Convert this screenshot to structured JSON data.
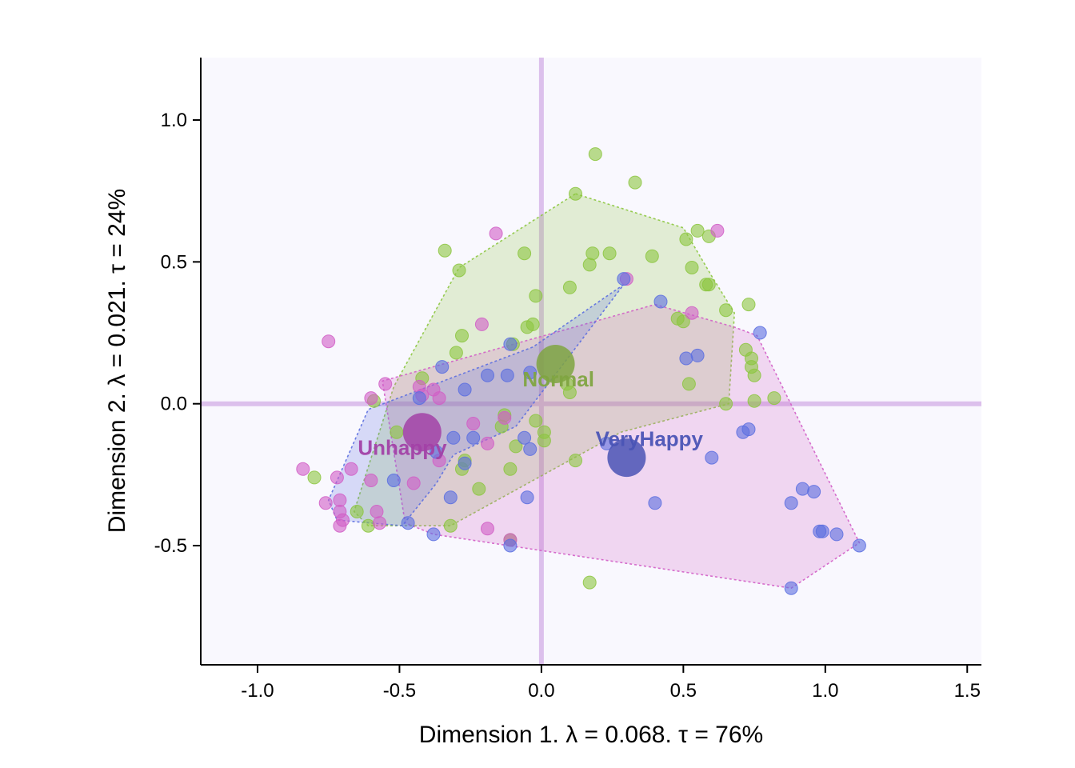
{
  "chart_data": {
    "type": "scatter",
    "xlabel": "Dimension 1.   λ = 0.068.  τ = 76%",
    "ylabel": "Dimension 2.   λ = 0.021.  τ = 24%",
    "xlim": [
      -1.2,
      1.55
    ],
    "ylim": [
      -0.92,
      1.22
    ],
    "xticks": [
      -1.0,
      -0.5,
      0.0,
      0.5,
      1.0,
      1.5
    ],
    "xtick_labels": [
      "-1.0",
      "-0.5",
      "0.0",
      "0.5",
      "1.0",
      "1.5"
    ],
    "yticks": [
      -0.5,
      0.0,
      0.5,
      1.0
    ],
    "ytick_labels": [
      "-0.5",
      "0.0",
      "0.5",
      "1.0"
    ],
    "reference_lines": {
      "x": 0,
      "y": 0,
      "color": "#dcc0ec"
    },
    "background": "#f9f8fe",
    "groups": [
      {
        "name": "Normal",
        "color": "#8cc63f",
        "label_color": "#7fa441",
        "centroid": [
          0.05,
          0.14
        ],
        "label_pos": [
          0.06,
          0.08
        ],
        "hull": [
          [
            0.12,
            0.74
          ],
          [
            0.5,
            0.62
          ],
          [
            0.6,
            0.45
          ],
          [
            0.68,
            0.32
          ],
          [
            0.66,
            0.0
          ],
          [
            0.28,
            -0.1
          ],
          [
            -0.32,
            -0.43
          ],
          [
            -0.61,
            -0.43
          ],
          [
            -0.66,
            -0.38
          ],
          [
            -0.52,
            0.06
          ],
          [
            -0.29,
            0.48
          ]
        ],
        "points": [
          [
            0.19,
            0.88
          ],
          [
            0.33,
            0.78
          ],
          [
            0.12,
            0.74
          ],
          [
            0.55,
            0.61
          ],
          [
            0.59,
            0.59
          ],
          [
            0.51,
            0.58
          ],
          [
            -0.34,
            0.54
          ],
          [
            0.18,
            0.53
          ],
          [
            -0.06,
            0.53
          ],
          [
            0.24,
            0.53
          ],
          [
            0.39,
            0.52
          ],
          [
            0.17,
            0.49
          ],
          [
            0.53,
            0.48
          ],
          [
            -0.29,
            0.47
          ],
          [
            0.1,
            0.41
          ],
          [
            0.58,
            0.42
          ],
          [
            0.59,
            0.42
          ],
          [
            -0.02,
            0.38
          ],
          [
            0.65,
            0.33
          ],
          [
            0.73,
            0.35
          ],
          [
            0.48,
            0.3
          ],
          [
            0.5,
            0.29
          ],
          [
            -0.05,
            0.27
          ],
          [
            -0.03,
            0.28
          ],
          [
            -0.28,
            0.24
          ],
          [
            -0.1,
            0.21
          ],
          [
            0.72,
            0.19
          ],
          [
            0.74,
            0.16
          ],
          [
            -0.3,
            0.18
          ],
          [
            0.75,
            0.1
          ],
          [
            0.74,
            0.13
          ],
          [
            -0.42,
            0.09
          ],
          [
            0.09,
            0.07
          ],
          [
            0.52,
            0.07
          ],
          [
            0.1,
            0.04
          ],
          [
            -0.59,
            0.01
          ],
          [
            0.75,
            0.01
          ],
          [
            0.82,
            0.02
          ],
          [
            -0.13,
            -0.04
          ],
          [
            0.65,
            0.0
          ],
          [
            -0.51,
            -0.1
          ],
          [
            -0.02,
            -0.06
          ],
          [
            0.01,
            -0.1
          ],
          [
            0.01,
            -0.13
          ],
          [
            -0.14,
            -0.08
          ],
          [
            -0.09,
            -0.15
          ],
          [
            -0.27,
            -0.2
          ],
          [
            0.12,
            -0.2
          ],
          [
            -0.28,
            -0.23
          ],
          [
            -0.11,
            -0.23
          ],
          [
            -0.22,
            -0.3
          ],
          [
            -0.8,
            -0.26
          ],
          [
            -0.65,
            -0.38
          ],
          [
            -0.61,
            -0.43
          ],
          [
            -0.32,
            -0.43
          ],
          [
            -0.11,
            -0.48
          ],
          [
            0.17,
            -0.63
          ]
        ]
      },
      {
        "name": "Unhappy",
        "color": "#d15ec6",
        "label_color": "#a241a6",
        "centroid": [
          -0.42,
          -0.1
        ],
        "label_pos": [
          -0.49,
          -0.16
        ],
        "hull": [
          [
            0.4,
            0.35
          ],
          [
            0.68,
            0.27
          ],
          [
            0.76,
            0.24
          ],
          [
            1.12,
            -0.49
          ],
          [
            0.88,
            -0.65
          ],
          [
            -0.38,
            -0.46
          ],
          [
            -0.48,
            -0.42
          ],
          [
            -0.56,
            0.08
          ]
        ],
        "points": [
          [
            -0.16,
            0.6
          ],
          [
            0.62,
            0.61
          ],
          [
            0.3,
            0.44
          ],
          [
            0.53,
            0.32
          ],
          [
            -0.21,
            0.28
          ],
          [
            -0.75,
            0.22
          ],
          [
            -0.55,
            0.07
          ],
          [
            -0.43,
            0.06
          ],
          [
            -0.38,
            0.05
          ],
          [
            -0.6,
            0.02
          ],
          [
            -0.42,
            0.03
          ],
          [
            -0.36,
            0.02
          ],
          [
            -0.24,
            -0.07
          ],
          [
            -0.13,
            -0.05
          ],
          [
            -0.19,
            -0.14
          ],
          [
            -0.36,
            -0.2
          ],
          [
            -0.67,
            -0.23
          ],
          [
            -0.84,
            -0.23
          ],
          [
            -0.6,
            -0.27
          ],
          [
            -0.45,
            -0.28
          ],
          [
            -0.72,
            -0.26
          ],
          [
            -0.71,
            -0.34
          ],
          [
            -0.76,
            -0.35
          ],
          [
            -0.71,
            -0.38
          ],
          [
            -0.58,
            -0.38
          ],
          [
            -0.7,
            -0.41
          ],
          [
            -0.71,
            -0.43
          ],
          [
            -0.57,
            -0.42
          ],
          [
            -0.19,
            -0.44
          ],
          [
            -0.11,
            -0.48
          ]
        ]
      },
      {
        "name": "VeryHappy",
        "color": "#5b6ee0",
        "label_color": "#4a54b5",
        "centroid": [
          0.3,
          -0.19
        ],
        "label_pos": [
          0.38,
          -0.13
        ],
        "hull": [
          [
            0.29,
            0.42
          ],
          [
            -0.03,
            0.2
          ],
          [
            -0.61,
            -0.02
          ],
          [
            -0.75,
            -0.34
          ],
          [
            -0.72,
            -0.41
          ],
          [
            -0.49,
            -0.43
          ],
          [
            -0.37,
            -0.28
          ],
          [
            -0.31,
            -0.18
          ],
          [
            -0.09,
            -0.08
          ]
        ],
        "points": [
          [
            0.29,
            0.44
          ],
          [
            0.42,
            0.36
          ],
          [
            0.77,
            0.25
          ],
          [
            -0.11,
            0.21
          ],
          [
            0.51,
            0.16
          ],
          [
            0.55,
            0.17
          ],
          [
            -0.35,
            0.13
          ],
          [
            -0.19,
            0.1
          ],
          [
            -0.12,
            0.1
          ],
          [
            -0.04,
            0.11
          ],
          [
            -0.27,
            0.05
          ],
          [
            -0.43,
            0.02
          ],
          [
            -0.31,
            -0.12
          ],
          [
            -0.24,
            -0.12
          ],
          [
            0.23,
            -0.14
          ],
          [
            0.71,
            -0.1
          ],
          [
            0.73,
            -0.09
          ],
          [
            -0.06,
            -0.12
          ],
          [
            -0.04,
            -0.16
          ],
          [
            0.6,
            -0.19
          ],
          [
            -0.37,
            -0.17
          ],
          [
            -0.27,
            -0.21
          ],
          [
            -0.52,
            -0.27
          ],
          [
            0.92,
            -0.3
          ],
          [
            0.96,
            -0.31
          ],
          [
            -0.32,
            -0.33
          ],
          [
            -0.05,
            -0.33
          ],
          [
            0.4,
            -0.35
          ],
          [
            0.88,
            -0.35
          ],
          [
            -0.47,
            -0.42
          ],
          [
            -0.38,
            -0.46
          ],
          [
            0.98,
            -0.45
          ],
          [
            0.99,
            -0.45
          ],
          [
            1.04,
            -0.46
          ],
          [
            -0.11,
            -0.5
          ],
          [
            1.12,
            -0.5
          ],
          [
            0.88,
            -0.65
          ]
        ]
      }
    ]
  }
}
